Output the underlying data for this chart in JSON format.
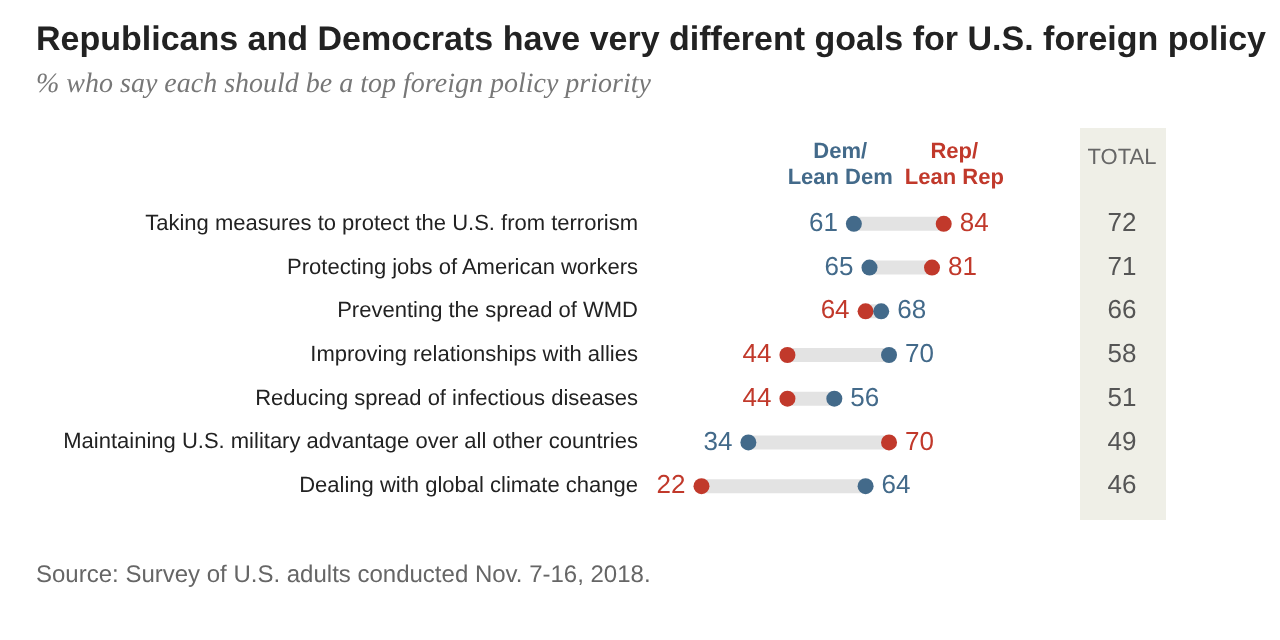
{
  "chart_data": {
    "type": "scatter",
    "title": "Republicans and Democrats have very different goals for U.S. foreign policy",
    "subtitle": "% who say each should be a top foreign policy priority",
    "orientation": "horizontal",
    "categories": [
      "Taking measures to protect the U.S. from terrorism",
      "Protecting jobs of American workers",
      "Preventing the spread of WMD",
      "Improving relationships with allies",
      "Reducing spread of infectious diseases",
      "Maintaining U.S. military advantage over all other countries",
      "Dealing with global climate change"
    ],
    "series": [
      {
        "name": "Dem/Lean Dem",
        "color": "#436a8a",
        "values": [
          61,
          65,
          68,
          70,
          56,
          34,
          64
        ]
      },
      {
        "name": "Rep/Lean Rep",
        "color": "#c1392b",
        "values": [
          84,
          81,
          64,
          44,
          44,
          70,
          22
        ]
      }
    ],
    "data_labels": true,
    "legend": false,
    "marker": "circle",
    "annotations": [
      "TOTAL",
      "72",
      "71",
      "66",
      "58",
      "51",
      "49",
      "46",
      "Source: Survey of U.S. adults conducted Nov. 7-16, 2018."
    ]
  }
}
